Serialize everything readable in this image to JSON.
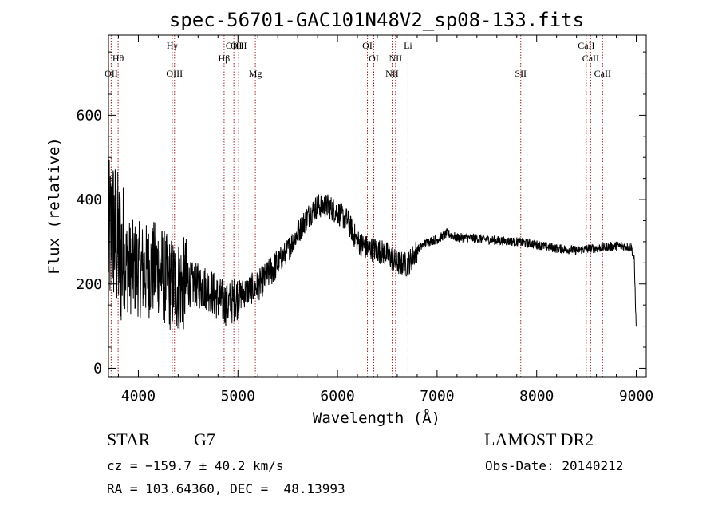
{
  "chart_data": {
    "type": "line",
    "title": "spec-56701-GAC101N48V2_sp08-133.fits",
    "xlabel": "Wavelength (Å)",
    "ylabel": "Flux (relative)",
    "xlim": [
      3700,
      9100
    ],
    "ylim": [
      -20,
      790
    ],
    "xticks": [
      {
        "value": 4000,
        "label": "4000"
      },
      {
        "value": 5000,
        "label": "5000"
      },
      {
        "value": 6000,
        "label": "6000"
      },
      {
        "value": 7000,
        "label": "7000"
      },
      {
        "value": 8000,
        "label": "8000"
      },
      {
        "value": 9000,
        "label": "9000"
      }
    ],
    "yticks": [
      {
        "value": 0,
        "label": "0"
      },
      {
        "value": 200,
        "label": "200"
      },
      {
        "value": 400,
        "label": "400"
      },
      {
        "value": 600,
        "label": "600"
      }
    ],
    "series": [
      {
        "color": "#000000",
        "continuum": [
          [
            3700,
            300
          ],
          [
            3750,
            330
          ],
          [
            3800,
            280
          ],
          [
            3900,
            240
          ],
          [
            4000,
            235
          ],
          [
            4100,
            230
          ],
          [
            4200,
            240
          ],
          [
            4300,
            200
          ],
          [
            4400,
            195
          ],
          [
            4500,
            200
          ],
          [
            4600,
            195
          ],
          [
            4700,
            190
          ],
          [
            4800,
            165
          ],
          [
            4900,
            150
          ],
          [
            5000,
            170
          ],
          [
            5100,
            185
          ],
          [
            5200,
            195
          ],
          [
            5300,
            220
          ],
          [
            5400,
            250
          ],
          [
            5500,
            280
          ],
          [
            5600,
            320
          ],
          [
            5700,
            360
          ],
          [
            5800,
            385
          ],
          [
            5900,
            385
          ],
          [
            6000,
            370
          ],
          [
            6100,
            350
          ],
          [
            6200,
            300
          ],
          [
            6300,
            285
          ],
          [
            6400,
            280
          ],
          [
            6500,
            270
          ],
          [
            6600,
            250
          ],
          [
            6700,
            245
          ],
          [
            6800,
            280
          ],
          [
            6900,
            300
          ],
          [
            7000,
            305
          ],
          [
            7100,
            320
          ],
          [
            7200,
            310
          ],
          [
            7400,
            308
          ],
          [
            7600,
            303
          ],
          [
            7800,
            300
          ],
          [
            8000,
            293
          ],
          [
            8200,
            284
          ],
          [
            8400,
            280
          ],
          [
            8600,
            285
          ],
          [
            8800,
            290
          ],
          [
            8950,
            288
          ],
          [
            8980,
            255
          ],
          [
            9000,
            90
          ]
        ]
      }
    ],
    "lines": [
      {
        "label": "OII",
        "x": 3727,
        "row": 3
      },
      {
        "label": "Hθ",
        "x": 3797,
        "row": 2
      },
      {
        "label": "Hγ",
        "x": 4340,
        "row": 1
      },
      {
        "label": "OIII",
        "x": 4363,
        "row": 3
      },
      {
        "label": "Hβ",
        "x": 4861,
        "row": 2
      },
      {
        "label": "OIII",
        "x": 4959,
        "row": 1
      },
      {
        "label": "OIII",
        "x": 5007,
        "row": 1
      },
      {
        "label": "Mg",
        "x": 5175,
        "row": 3
      },
      {
        "label": "OI",
        "x": 6300,
        "row": 1
      },
      {
        "label": "OI",
        "x": 6364,
        "row": 2
      },
      {
        "label": "NII",
        "x": 6548,
        "row": 3
      },
      {
        "label": "NII",
        "x": 6583,
        "row": 2
      },
      {
        "label": "Li",
        "x": 6708,
        "row": 1
      },
      {
        "label": "SII",
        "x": 7840,
        "row": 3
      },
      {
        "label": "CaII",
        "x": 8498,
        "row": 1
      },
      {
        "label": "CaII",
        "x": 8542,
        "row": 2
      },
      {
        "label": "CaII",
        "x": 8662,
        "row": 3
      }
    ],
    "line_color": "#a02020",
    "grid": false
  },
  "info": {
    "class_type": "STAR",
    "subclass": "G7",
    "survey": "LAMOST DR2",
    "velocity": "cz = −159.7 ± 40.2 km/s",
    "obs_date": "Obs-Date: 20140212",
    "coords": "RA = 103.64360, DEC =  48.13993"
  }
}
